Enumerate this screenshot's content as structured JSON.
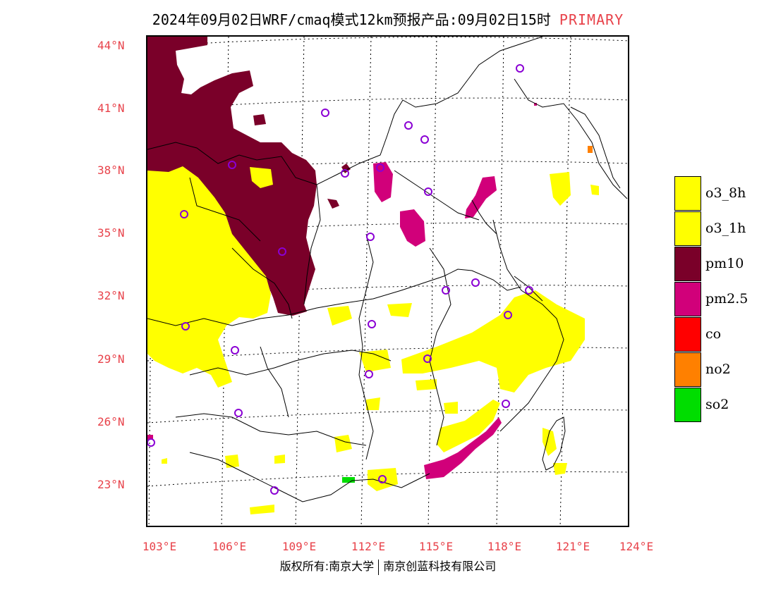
{
  "title": {
    "main": "2024年09月02日WRF/cmaq模式12km预报产品:09月02日15时",
    "tag": "PRIMARY"
  },
  "lat_labels": [
    "44°N",
    "41°N",
    "38°N",
    "35°N",
    "32°N",
    "29°N",
    "26°N",
    "23°N"
  ],
  "lon_labels": [
    "103°E",
    "106°E",
    "109°E",
    "112°E",
    "115°E",
    "118°E",
    "121°E",
    "124°E"
  ],
  "legend": [
    {
      "label": "o3_8h",
      "color": "#ffff00"
    },
    {
      "label": "o3_1h",
      "color": "#ffff00"
    },
    {
      "label": "pm10",
      "color": "#7a0029"
    },
    {
      "label": "pm2.5",
      "color": "#d1007a"
    },
    {
      "label": "co",
      "color": "#ff0000"
    },
    {
      "label": "no2",
      "color": "#ff8000"
    },
    {
      "label": "so2",
      "color": "#00dd00"
    }
  ],
  "footer": {
    "left": "版权所有:南京大学",
    "right": "南京创蓝科技有限公司"
  }
}
